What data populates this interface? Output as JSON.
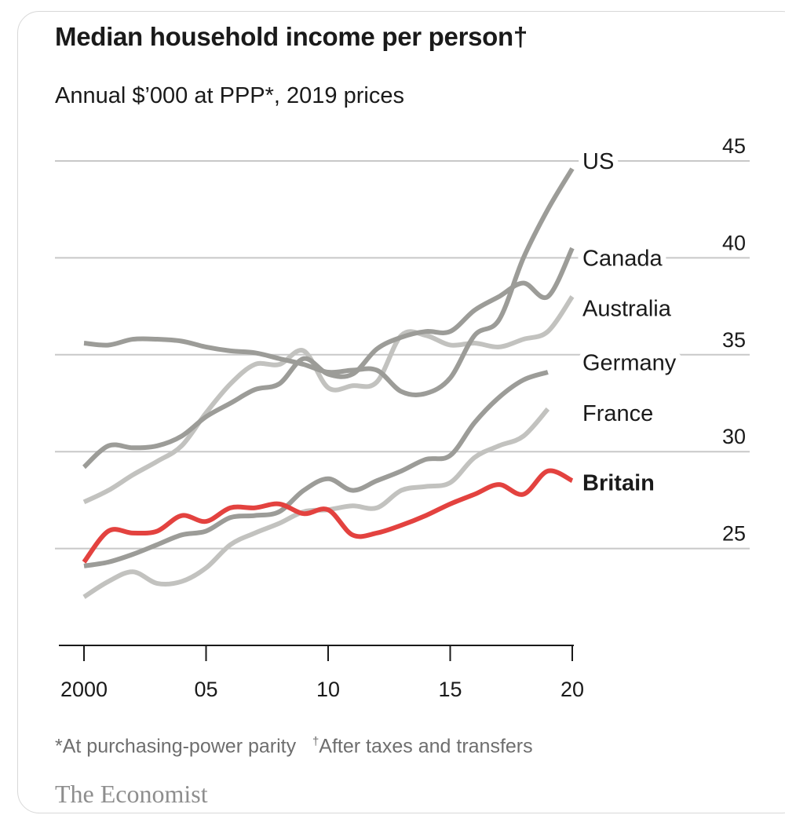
{
  "title": "Median household income per person†",
  "subtitle": "Annual $’000 at PPP*, 2019 prices",
  "footnote_1": "*At purchasing-power parity",
  "footnote_2_mark": "†",
  "footnote_2": "After taxes and transfers",
  "source_logo": "The Economist",
  "chart_data": {
    "type": "line",
    "title": "Median household income per person†",
    "ylabel": "Annual $’000 at PPP*, 2019 prices",
    "xlabel": "",
    "xlim": [
      2000,
      2020
    ],
    "ylim": [
      20,
      45
    ],
    "x_ticks": [
      2000,
      2005,
      2010,
      2015,
      2020
    ],
    "x_tick_labels": [
      "2000",
      "05",
      "10",
      "15",
      "20"
    ],
    "y_ticks": [
      25,
      30,
      35,
      40,
      45
    ],
    "y_tick_labels": [
      "25",
      "30",
      "35",
      "40",
      "45"
    ],
    "grid": true,
    "legend": "direct labels, right",
    "series": [
      {
        "name": "US",
        "color": "#9c9c98",
        "x": [
          2000,
          2001,
          2002,
          2003,
          2004,
          2005,
          2006,
          2007,
          2008,
          2009,
          2010,
          2011,
          2012,
          2013,
          2014,
          2015,
          2016,
          2017,
          2018,
          2019,
          2020
        ],
        "values": [
          35.6,
          35.5,
          35.8,
          35.8,
          35.7,
          35.4,
          35.2,
          35.1,
          34.8,
          34.5,
          34.1,
          34.2,
          34.2,
          33.1,
          33.0,
          33.8,
          36.0,
          36.8,
          40.0,
          42.5,
          44.6
        ]
      },
      {
        "name": "Canada",
        "color": "#9c9c98",
        "x": [
          2000,
          2001,
          2002,
          2003,
          2004,
          2005,
          2006,
          2007,
          2008,
          2009,
          2010,
          2011,
          2012,
          2013,
          2014,
          2015,
          2016,
          2017,
          2018,
          2019,
          2020
        ],
        "values": [
          29.2,
          30.3,
          30.2,
          30.3,
          30.8,
          31.8,
          32.5,
          33.2,
          33.5,
          34.8,
          34.0,
          34.0,
          35.3,
          35.9,
          36.2,
          36.2,
          37.3,
          38.0,
          38.7,
          38.0,
          40.5
        ]
      },
      {
        "name": "Australia",
        "color": "#c2c2bf",
        "x": [
          2000,
          2001,
          2002,
          2003,
          2004,
          2005,
          2006,
          2007,
          2008,
          2009,
          2010,
          2011,
          2012,
          2013,
          2014,
          2015,
          2016,
          2017,
          2018,
          2019,
          2020
        ],
        "values": [
          27.4,
          28.0,
          28.8,
          29.5,
          30.3,
          32.0,
          33.5,
          34.5,
          34.5,
          35.2,
          33.3,
          33.4,
          33.6,
          36.0,
          36.0,
          35.5,
          35.6,
          35.4,
          35.8,
          36.2,
          38.0
        ]
      },
      {
        "name": "Germany",
        "color": "#9c9c98",
        "x": [
          2000,
          2001,
          2002,
          2003,
          2004,
          2005,
          2006,
          2007,
          2008,
          2009,
          2010,
          2011,
          2012,
          2013,
          2014,
          2015,
          2016,
          2017,
          2018,
          2019
        ],
        "values": [
          24.1,
          24.3,
          24.7,
          25.2,
          25.7,
          25.9,
          26.6,
          26.7,
          26.9,
          28.0,
          28.6,
          28.0,
          28.5,
          29.0,
          29.6,
          29.8,
          31.5,
          32.8,
          33.7,
          34.1
        ]
      },
      {
        "name": "France",
        "color": "#c2c2bf",
        "x": [
          2000,
          2001,
          2002,
          2003,
          2004,
          2005,
          2006,
          2007,
          2008,
          2009,
          2010,
          2011,
          2012,
          2013,
          2014,
          2015,
          2016,
          2017,
          2018,
          2019
        ],
        "values": [
          22.5,
          23.3,
          23.8,
          23.2,
          23.3,
          24.0,
          25.2,
          25.8,
          26.3,
          26.9,
          27.0,
          27.2,
          27.1,
          28.0,
          28.2,
          28.4,
          29.7,
          30.3,
          30.8,
          32.2
        ]
      },
      {
        "name": "Britain",
        "color": "#e3423f",
        "x": [
          2000,
          2001,
          2002,
          2003,
          2004,
          2005,
          2006,
          2007,
          2008,
          2009,
          2010,
          2011,
          2012,
          2013,
          2014,
          2015,
          2016,
          2017,
          2018,
          2019,
          2020
        ],
        "values": [
          24.3,
          25.9,
          25.8,
          25.9,
          26.7,
          26.4,
          27.1,
          27.1,
          27.3,
          26.8,
          27.0,
          25.7,
          25.8,
          26.2,
          26.7,
          27.3,
          27.8,
          28.3,
          27.8,
          29.0,
          28.5
        ]
      }
    ],
    "series_labels": [
      {
        "name": "US",
        "at_value": 45.0
      },
      {
        "name": "Canada",
        "at_value": 40.0
      },
      {
        "name": "Australia",
        "at_value": 37.4
      },
      {
        "name": "Germany",
        "at_value": 34.6
      },
      {
        "name": "France",
        "at_value": 32.0
      },
      {
        "name": "Britain",
        "at_value": 28.4
      }
    ]
  }
}
